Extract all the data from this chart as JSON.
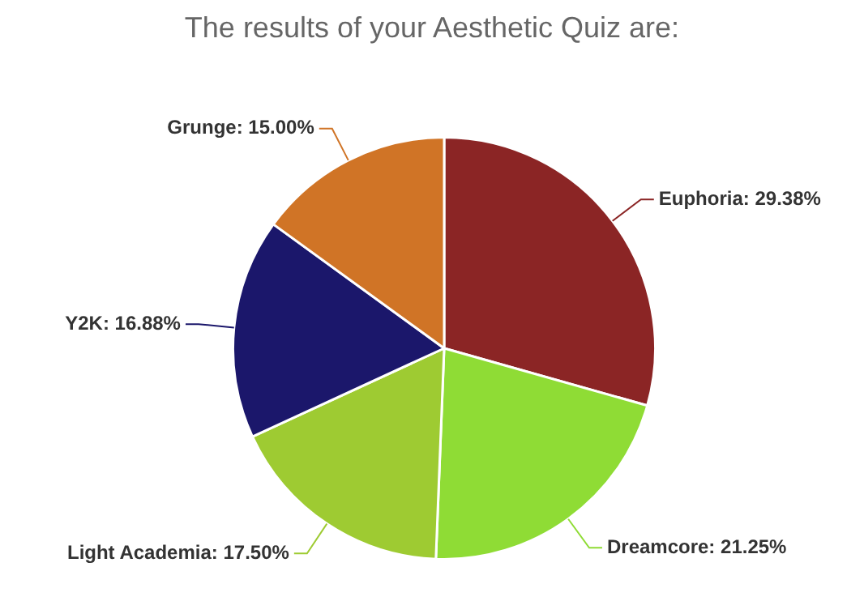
{
  "chart_data": {
    "type": "pie",
    "title": "The results of your Aesthetic Quiz are:",
    "categories": [
      "Euphoria",
      "Dreamcore",
      "Light Academia",
      "Y2K",
      "Grunge"
    ],
    "values": [
      29.38,
      21.25,
      17.5,
      16.88,
      15.0
    ],
    "colors": [
      "#8b2525",
      "#8fdc35",
      "#9ecb32",
      "#1b176b",
      "#d07426"
    ],
    "value_labels": [
      "29.38%",
      "21.25%",
      "17.50%",
      "16.88%",
      "15.00%"
    ],
    "legend": false
  }
}
